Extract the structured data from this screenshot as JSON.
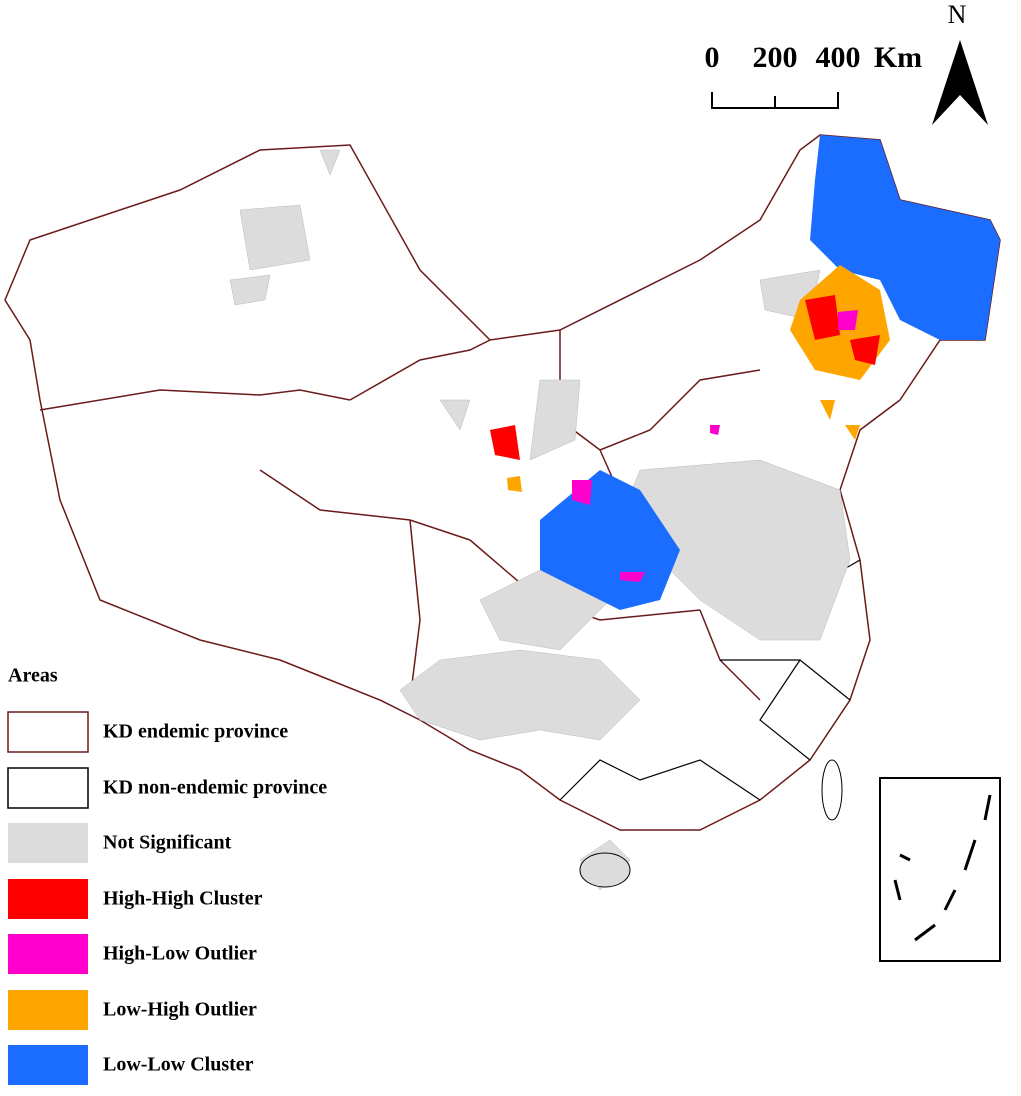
{
  "north_arrow": {
    "label": "N"
  },
  "scale_bar": {
    "labels": [
      "0",
      "200",
      "400"
    ],
    "unit": "Km"
  },
  "legend": {
    "title": "Areas",
    "items": [
      "KD endemic province",
      "KD non-endemic province",
      "Not Significant",
      "High-High Cluster",
      "High-Low Outlier",
      "Low-High Outlier",
      "Low-Low Cluster"
    ]
  }
}
